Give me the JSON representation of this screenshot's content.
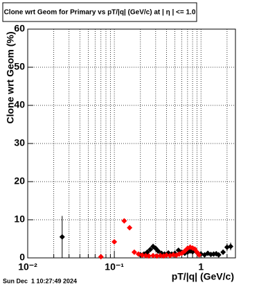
{
  "chart_data": {
    "type": "scatter",
    "title": "Clone wrt Geom for Primary vs pT/|q| (GeV/c) at | η | <= 1.0",
    "x_label": "pT/|q| (GeV/c)",
    "y_label": "Clone wrt Geom (%)",
    "timestamp": "Sun Dec  1 10:27:49 2024",
    "log_x": true,
    "grid": true,
    "xlim": [
      0.01,
      2.5
    ],
    "ylim": [
      0,
      60
    ],
    "xticks": [
      {
        "value": 0.01,
        "label": "10⁻²"
      },
      {
        "value": 0.1,
        "label": "10⁻¹"
      },
      1
    ],
    "x_minor_ticks": [
      0.02,
      0.03,
      0.04,
      0.05,
      0.06,
      0.07,
      0.08,
      0.09,
      0.2,
      0.3,
      0.4,
      0.5,
      0.6,
      0.7,
      0.8,
      0.9,
      2
    ],
    "yticks": [
      0,
      10,
      20,
      30,
      40,
      50,
      60
    ],
    "series": [
      {
        "color": "#000000",
        "x": [
          0.025,
          0.2,
          0.22,
          0.24,
          0.26,
          0.28,
          0.3,
          0.32,
          0.35,
          0.38,
          0.42,
          0.46,
          0.5,
          0.55,
          0.6,
          0.65,
          0.7,
          0.75,
          0.8,
          0.9,
          1.0,
          1.1,
          1.2,
          1.3,
          1.4,
          1.5,
          1.6,
          1.8,
          2.0,
          2.2
        ],
        "values": [
          5.5,
          0.8,
          1.0,
          1.5,
          2.2,
          3.0,
          2.5,
          1.8,
          1.2,
          1.0,
          1.3,
          1.0,
          1.2,
          2.0,
          1.5,
          1.2,
          1.5,
          1.8,
          1.6,
          1.4,
          1.0,
          0.8,
          1.2,
          0.9,
          1.0,
          1.1,
          0.8,
          1.5,
          2.8,
          3.0
        ],
        "errors": [
          5.5,
          0.4,
          0.4,
          0.5,
          0.6,
          0.7,
          0.6,
          0.5,
          0.4,
          0.4,
          0.4,
          0.4,
          0.4,
          0.5,
          0.5,
          0.4,
          0.5,
          0.5,
          0.5,
          0.5,
          0.4,
          0.4,
          0.5,
          0.4,
          0.5,
          0.5,
          0.5,
          0.7,
          1.0,
          1.0
        ]
      },
      {
        "color": "#ff0000",
        "x": [
          0.07,
          0.1,
          0.13,
          0.15,
          0.17,
          0.19,
          0.21,
          0.23,
          0.25,
          0.28,
          0.31,
          0.34,
          0.37,
          0.4,
          0.44,
          0.48,
          0.52,
          0.56,
          0.6,
          0.65,
          0.7,
          0.75,
          0.8,
          0.85,
          0.9,
          0.95
        ],
        "values": [
          0.3,
          4.2,
          9.7,
          7.9,
          1.5,
          1.0,
          0.7,
          0.6,
          0.5,
          0.6,
          0.5,
          0.6,
          0.5,
          0.7,
          0.6,
          0.8,
          0.7,
          1.0,
          1.2,
          1.8,
          2.5,
          2.8,
          2.6,
          2.3,
          1.5,
          0.8
        ],
        "errors": [
          0.3,
          0.5,
          0.6,
          0.6,
          0.4,
          0.3,
          0.3,
          0.3,
          0.3,
          0.3,
          0.3,
          0.3,
          0.3,
          0.3,
          0.3,
          0.3,
          0.3,
          0.4,
          0.4,
          0.5,
          0.6,
          0.7,
          0.6,
          0.6,
          0.5,
          0.4
        ]
      }
    ]
  }
}
